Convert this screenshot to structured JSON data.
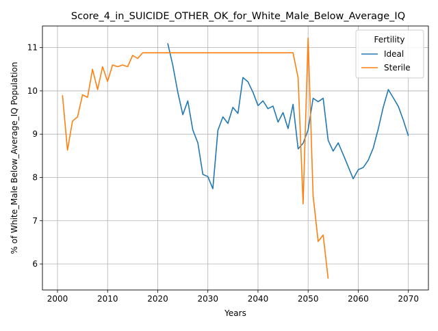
{
  "chart_data": {
    "type": "line",
    "title": "Score_4_in_SUICIDE_OTHER_OK_for_White_Male_Below_Average_IQ",
    "xlabel": "Years",
    "ylabel": "% of White_Male Below_Average_IQ Population",
    "xlim": [
      1997,
      2074
    ],
    "ylim": [
      5.4,
      11.5
    ],
    "xticks": [
      2000,
      2010,
      2020,
      2030,
      2040,
      2050,
      2060,
      2070
    ],
    "yticks": [
      6,
      7,
      8,
      9,
      10,
      11
    ],
    "grid": true,
    "legend": {
      "title": "Fertility",
      "placement": "top-right",
      "entries": [
        "Ideal",
        "Sterile"
      ]
    },
    "series": [
      {
        "name": "Ideal",
        "color": "#1f77b4",
        "x": [
          2022,
          2023,
          2024,
          2025,
          2026,
          2027,
          2028,
          2029,
          2030,
          2031,
          2032,
          2033,
          2034,
          2035,
          2036,
          2037,
          2038,
          2039,
          2040,
          2041,
          2042,
          2043,
          2044,
          2045,
          2046,
          2047,
          2048,
          2049,
          2050,
          2051,
          2052,
          2053,
          2054,
          2055,
          2056,
          2057,
          2058,
          2059,
          2060,
          2061,
          2062,
          2063,
          2064,
          2065,
          2066,
          2067,
          2068,
          2069,
          2070
        ],
        "y": [
          11.1,
          10.6,
          9.97,
          9.45,
          9.77,
          9.1,
          8.8,
          8.07,
          8.02,
          7.74,
          9.09,
          9.4,
          9.25,
          9.62,
          9.48,
          10.31,
          10.21,
          9.97,
          9.66,
          9.77,
          9.59,
          9.65,
          9.28,
          9.5,
          9.13,
          9.69,
          8.66,
          8.79,
          9.1,
          9.83,
          9.75,
          9.83,
          8.86,
          8.61,
          8.8,
          8.53,
          8.25,
          7.97,
          8.18,
          8.23,
          8.4,
          8.68,
          9.13,
          9.63,
          10.03,
          9.84,
          9.64,
          9.32,
          8.96
        ]
      },
      {
        "name": "Sterile",
        "color": "#ff7f0e",
        "x": [
          2001,
          2002,
          2003,
          2004,
          2005,
          2006,
          2007,
          2008,
          2009,
          2010,
          2011,
          2012,
          2013,
          2014,
          2015,
          2016,
          2017,
          2018,
          2019,
          2020,
          2021,
          2022,
          2023,
          2024,
          2025,
          2026,
          2027,
          2028,
          2029,
          2030,
          2031,
          2032,
          2033,
          2034,
          2035,
          2036,
          2037,
          2038,
          2039,
          2040,
          2041,
          2042,
          2043,
          2044,
          2045,
          2046,
          2047,
          2048,
          2049,
          2050,
          2051,
          2052,
          2053,
          2054
        ],
        "y": [
          9.9,
          8.63,
          9.3,
          9.4,
          9.91,
          9.85,
          10.5,
          10.03,
          10.56,
          10.22,
          10.6,
          10.56,
          10.6,
          10.56,
          10.82,
          10.75,
          10.88,
          10.88,
          10.88,
          10.88,
          10.88,
          10.88,
          10.88,
          10.88,
          10.88,
          10.88,
          10.88,
          10.88,
          10.88,
          10.88,
          10.88,
          10.88,
          10.88,
          10.88,
          10.88,
          10.88,
          10.88,
          10.88,
          10.88,
          10.88,
          10.88,
          10.88,
          10.88,
          10.88,
          10.88,
          10.88,
          10.88,
          10.3,
          7.39,
          11.22,
          7.58,
          6.52,
          6.67,
          5.66
        ]
      }
    ]
  }
}
